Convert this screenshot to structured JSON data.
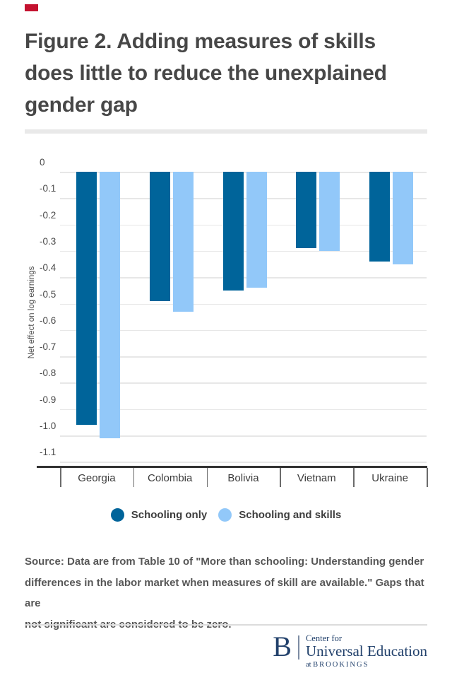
{
  "header": {
    "title_lines": [
      "Figure 2. Adding measures of skills",
      "does little to reduce the unexplained",
      "gender gap"
    ]
  },
  "chart_data": {
    "type": "bar",
    "title": "Figure 2. Adding measures of skills does little to reduce the unexplained gender gap",
    "categories": [
      "Georgia",
      "Colombia",
      "Bolivia",
      "Vietnam",
      "Ukraine"
    ],
    "series": [
      {
        "name": "Schooling only",
        "color": "#00649A",
        "values": [
          -0.96,
          -0.49,
          -0.45,
          -0.29,
          -0.34
        ]
      },
      {
        "name": "Schooling and skills",
        "color": "#92C8F9",
        "values": [
          -1.01,
          -0.53,
          -0.44,
          -0.3,
          -0.35
        ]
      }
    ],
    "xlabel": "",
    "ylabel": "Net effect on log earnings",
    "y_ticks": [
      "0",
      "-0.1",
      "-0.2",
      "-0.3",
      "-0.4",
      "-0.5",
      "-0.6",
      "-0.7",
      "-0.8",
      "-0.9",
      "-1.0",
      "-1.1"
    ],
    "ylim": [
      0,
      -1.1
    ],
    "grid": true,
    "legend_position": "bottom"
  },
  "source": {
    "lines": [
      "Source: Data are from Table 10 of \"More than schooling: Understanding gender",
      "differences in the labor market when measures of skill are available.\" Gaps that are",
      "not significant are considered to be zero."
    ]
  },
  "footer": {
    "b": "B",
    "center_for": "Center for",
    "universal_education": "Universal Education",
    "at": "at",
    "brookings": "BROOKINGS"
  }
}
